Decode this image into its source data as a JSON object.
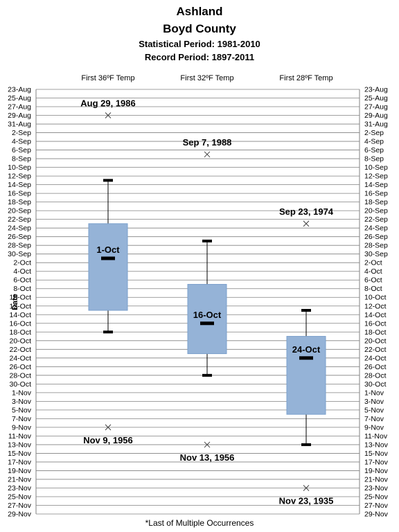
{
  "titles": {
    "line1": "Ashland",
    "line2": "Boyd County",
    "line3": "Statistical Period: 1981-2010",
    "line4": "Record Period: 1897-2011"
  },
  "footnote": "*Last of Multiple Occurrences",
  "chart_data": {
    "type": "box",
    "ylabel": "Date",
    "y_ticks": [
      "23-Aug",
      "25-Aug",
      "27-Aug",
      "29-Aug",
      "31-Aug",
      "2-Sep",
      "4-Sep",
      "6-Sep",
      "8-Sep",
      "10-Sep",
      "12-Sep",
      "14-Sep",
      "16-Sep",
      "18-Sep",
      "20-Sep",
      "22-Sep",
      "24-Sep",
      "26-Sep",
      "28-Sep",
      "30-Sep",
      "2-Oct",
      "4-Oct",
      "6-Oct",
      "8-Oct",
      "10-Oct",
      "12-Oct",
      "14-Oct",
      "16-Oct",
      "18-Oct",
      "20-Oct",
      "22-Oct",
      "24-Oct",
      "26-Oct",
      "28-Oct",
      "30-Oct",
      "1-Nov",
      "3-Nov",
      "5-Nov",
      "7-Nov",
      "9-Nov",
      "11-Nov",
      "13-Nov",
      "15-Nov",
      "17-Nov",
      "19-Nov",
      "21-Nov",
      "23-Nov",
      "25-Nov",
      "27-Nov",
      "29-Nov"
    ],
    "ylim": [
      "23-Aug",
      "29-Nov"
    ],
    "reversed_y": true,
    "grid": true,
    "colors": {
      "box": "#95b3d7",
      "box_edge": "#7ba0cc",
      "grid": "#808080"
    },
    "categories": [
      {
        "label": "First 36ºF Temp",
        "whisker_low": "13-Sep",
        "q1": "23-Sep",
        "median": "1-Oct",
        "q3": "13-Oct",
        "whisker_high": "18-Oct",
        "median_label": "1-Oct",
        "records": [
          {
            "date": "29-Aug",
            "label": "Aug 29, 1986",
            "label_pos": "above"
          },
          {
            "date": "9-Nov",
            "label": "Nov 9, 1956",
            "label_pos": "below"
          }
        ]
      },
      {
        "label": "First 32ºF Temp",
        "whisker_low": "27-Sep",
        "q1": "7-Oct",
        "median": "16-Oct",
        "q3": "23-Oct",
        "whisker_high": "28-Oct",
        "median_label": "16-Oct",
        "records": [
          {
            "date": "7-Sep",
            "label": "Sep 7, 1988",
            "label_pos": "above"
          },
          {
            "date": "13-Nov",
            "label": "Nov 13, 1956",
            "label_pos": "below"
          }
        ]
      },
      {
        "label": "First 28ºF Temp",
        "whisker_low": "13-Oct",
        "q1": "19-Oct",
        "median": "24-Oct",
        "q3": "6-Nov",
        "whisker_high": "13-Nov",
        "median_label": "24-Oct",
        "records": [
          {
            "date": "23-Sep",
            "label": "Sep 23, 1974",
            "label_pos": "above"
          },
          {
            "date": "23-Nov",
            "label": "Nov 23, 1935",
            "label_pos": "below"
          }
        ]
      }
    ]
  }
}
